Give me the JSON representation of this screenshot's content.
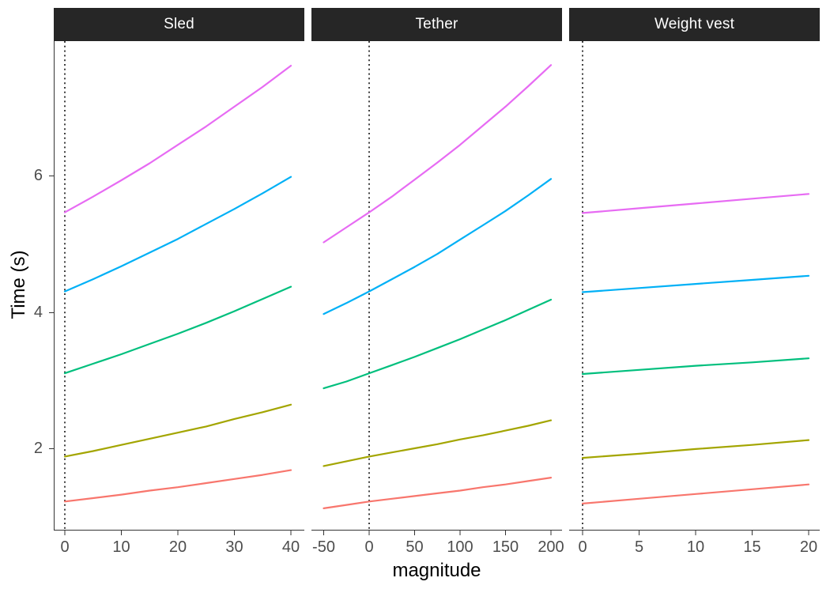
{
  "figure": {
    "strip_background": "#262626",
    "strip_text_color": "#ffffff",
    "axis_line_color": "#333333",
    "tick_label_color": "#4d4d4d",
    "reference_line_style": "dotted"
  },
  "chart_data": {
    "type": "line",
    "title": "",
    "xlabel": "magnitude",
    "ylabel": "Time (s)",
    "ylim": [
      0.8,
      8.0
    ],
    "y_ticks": [
      2,
      4,
      6
    ],
    "grid": "off",
    "legend": "none",
    "facets": [
      {
        "label": "Sled",
        "xlim": [
          -2,
          42
        ],
        "x_ticks": [
          0,
          10,
          20,
          30,
          40
        ],
        "reference_line_x": 0,
        "series": [
          {
            "name": "salmon",
            "color": "#F8766D",
            "x": [
              0,
              5,
              10,
              15,
              20,
              25,
              30,
              35,
              40
            ],
            "y": [
              1.22,
              1.27,
              1.32,
              1.38,
              1.43,
              1.49,
              1.55,
              1.61,
              1.68
            ]
          },
          {
            "name": "olive",
            "color": "#A3A500",
            "x": [
              0,
              5,
              10,
              15,
              20,
              25,
              30,
              35,
              40
            ],
            "y": [
              1.88,
              1.96,
              2.05,
              2.14,
              2.23,
              2.32,
              2.43,
              2.53,
              2.64
            ]
          },
          {
            "name": "green",
            "color": "#00BF7D",
            "x": [
              0,
              5,
              10,
              15,
              20,
              25,
              30,
              35,
              40
            ],
            "y": [
              3.1,
              3.24,
              3.38,
              3.53,
              3.68,
              3.84,
              4.01,
              4.19,
              4.37
            ]
          },
          {
            "name": "blue",
            "color": "#00B0F6",
            "x": [
              0,
              5,
              10,
              15,
              20,
              25,
              30,
              35,
              40
            ],
            "y": [
              4.3,
              4.48,
              4.67,
              4.87,
              5.07,
              5.29,
              5.51,
              5.74,
              5.98
            ]
          },
          {
            "name": "magenta",
            "color": "#E76BF3",
            "x": [
              0,
              5,
              10,
              15,
              20,
              25,
              30,
              35,
              40
            ],
            "y": [
              5.46,
              5.69,
              5.93,
              6.18,
              6.45,
              6.72,
              7.01,
              7.3,
              7.61
            ]
          }
        ]
      },
      {
        "label": "Tether",
        "xlim": [
          -63,
          213
        ],
        "x_ticks": [
          -50,
          0,
          50,
          100,
          150,
          200
        ],
        "reference_line_x": 0,
        "series": [
          {
            "name": "salmon",
            "color": "#F8766D",
            "x": [
              -50,
              -25,
              0,
              25,
              50,
              75,
              100,
              125,
              150,
              175,
              200
            ],
            "y": [
              1.12,
              1.17,
              1.22,
              1.26,
              1.3,
              1.34,
              1.38,
              1.43,
              1.47,
              1.52,
              1.57
            ]
          },
          {
            "name": "olive",
            "color": "#A3A500",
            "x": [
              -50,
              -25,
              0,
              25,
              50,
              75,
              100,
              125,
              150,
              175,
              200
            ],
            "y": [
              1.74,
              1.81,
              1.88,
              1.94,
              2.0,
              2.06,
              2.13,
              2.19,
              2.26,
              2.33,
              2.41
            ]
          },
          {
            "name": "green",
            "color": "#00BF7D",
            "x": [
              -50,
              -25,
              0,
              25,
              50,
              75,
              100,
              125,
              150,
              175,
              200
            ],
            "y": [
              2.88,
              2.98,
              3.1,
              3.22,
              3.34,
              3.47,
              3.6,
              3.74,
              3.88,
              4.03,
              4.18
            ]
          },
          {
            "name": "blue",
            "color": "#00B0F6",
            "x": [
              -50,
              -25,
              0,
              25,
              50,
              75,
              100,
              125,
              150,
              175,
              200
            ],
            "y": [
              3.97,
              4.13,
              4.3,
              4.48,
              4.66,
              4.85,
              5.06,
              5.27,
              5.48,
              5.71,
              5.95
            ]
          },
          {
            "name": "magenta",
            "color": "#E76BF3",
            "x": [
              -50,
              -25,
              0,
              25,
              50,
              75,
              100,
              125,
              150,
              175,
              200
            ],
            "y": [
              5.02,
              5.24,
              5.46,
              5.69,
              5.94,
              6.19,
              6.45,
              6.73,
              7.01,
              7.31,
              7.62
            ]
          }
        ]
      },
      {
        "label": "Weight vest",
        "xlim": [
          -1.2,
          21
        ],
        "x_ticks": [
          0,
          5,
          10,
          15,
          20
        ],
        "reference_line_x": 0,
        "series": [
          {
            "name": "salmon",
            "color": "#F8766D",
            "x": [
              0,
              5,
              10,
              15,
              20
            ],
            "y": [
              1.19,
              1.26,
              1.33,
              1.4,
              1.47
            ]
          },
          {
            "name": "olive",
            "color": "#A3A500",
            "x": [
              0,
              5,
              10,
              15,
              20
            ],
            "y": [
              1.86,
              1.92,
              1.99,
              2.05,
              2.12
            ]
          },
          {
            "name": "green",
            "color": "#00BF7D",
            "x": [
              0,
              5,
              10,
              15,
              20
            ],
            "y": [
              3.09,
              3.15,
              3.21,
              3.26,
              3.32
            ]
          },
          {
            "name": "blue",
            "color": "#00B0F6",
            "x": [
              0,
              5,
              10,
              15,
              20
            ],
            "y": [
              4.29,
              4.35,
              4.41,
              4.47,
              4.53
            ]
          },
          {
            "name": "magenta",
            "color": "#E76BF3",
            "x": [
              0,
              5,
              10,
              15,
              20
            ],
            "y": [
              5.45,
              5.52,
              5.59,
              5.66,
              5.73
            ]
          }
        ]
      }
    ]
  }
}
